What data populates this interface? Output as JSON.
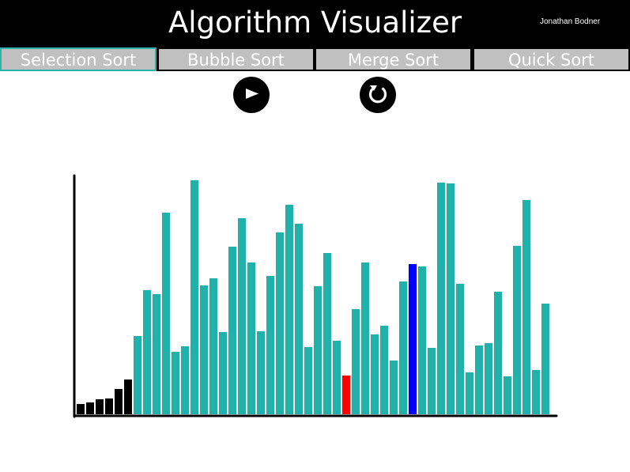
{
  "app": {
    "title": "Algorithm Visualizer",
    "author": "Jonathan Bodner"
  },
  "tabs": [
    {
      "label": "Selection Sort",
      "active": true
    },
    {
      "label": "Bubble Sort",
      "active": false
    },
    {
      "label": "Merge Sort",
      "active": false
    },
    {
      "label": "Quick Sort",
      "active": false
    }
  ],
  "controls": {
    "play_icon": "play-icon",
    "reset_icon": "reset-icon"
  },
  "colors": {
    "sorted": "#000000",
    "unsorted": "#20b2aa",
    "current": "#ff0000",
    "minimum": "#0000ff",
    "active_tab_border": "#2bb3aa"
  },
  "chart_data": {
    "type": "bar",
    "values": [
      13,
      15,
      19,
      20,
      32,
      44,
      99,
      157,
      152,
      255,
      79,
      86,
      296,
      163,
      172,
      104,
      212,
      248,
      192,
      105,
      175,
      230,
      265,
      241,
      85,
      162,
      204,
      93,
      49,
      133,
      192,
      101,
      112,
      68,
      168,
      190,
      187,
      84,
      293,
      292,
      165,
      53,
      87,
      90,
      155,
      48,
      213,
      271,
      56,
      140
    ],
    "bar_states": [
      "sorted",
      "sorted",
      "sorted",
      "sorted",
      "sorted",
      "sorted",
      "unsorted",
      "unsorted",
      "unsorted",
      "unsorted",
      "unsorted",
      "unsorted",
      "unsorted",
      "unsorted",
      "unsorted",
      "unsorted",
      "unsorted",
      "unsorted",
      "unsorted",
      "unsorted",
      "unsorted",
      "unsorted",
      "unsorted",
      "unsorted",
      "unsorted",
      "unsorted",
      "unsorted",
      "unsorted",
      "current",
      "unsorted",
      "unsorted",
      "unsorted",
      "unsorted",
      "unsorted",
      "unsorted",
      "minimum",
      "unsorted",
      "unsorted",
      "unsorted",
      "unsorted",
      "unsorted",
      "unsorted",
      "unsorted",
      "unsorted",
      "unsorted",
      "unsorted",
      "unsorted",
      "unsorted",
      "unsorted",
      "unsorted"
    ],
    "ylim": [
      0,
      300
    ],
    "grid": false,
    "title": "",
    "xlabel": "",
    "ylabel": ""
  }
}
